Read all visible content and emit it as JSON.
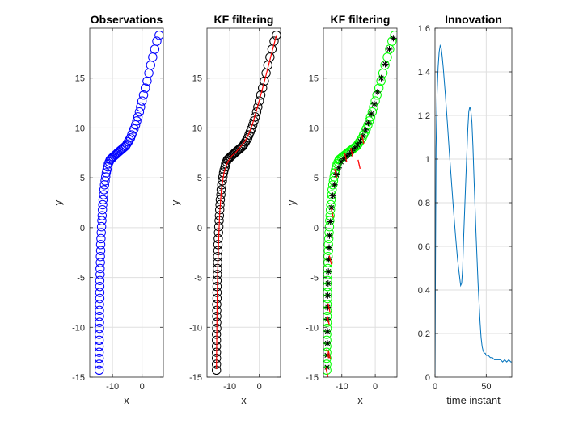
{
  "chart_data": [
    {
      "type": "scatter",
      "title": "Observations",
      "xlabel": "x",
      "ylabel": "y",
      "xlim": [
        -17.7,
        7.2
      ],
      "ylim": [
        -15,
        20
      ],
      "xticks": [
        -10,
        0
      ],
      "yticks": [
        -15,
        -10,
        -5,
        0,
        5,
        10,
        15
      ],
      "ytick_labels": [
        "-15",
        "-10",
        "-5",
        "0",
        "5",
        "10",
        "15"
      ],
      "grid": true,
      "series": [
        {
          "role": "observations",
          "marker": "circle",
          "color": "#0000ff",
          "x": [
            -14.5,
            -14.5,
            -14.5,
            -14.5,
            -14.5,
            -14.5,
            -14.5,
            -14.4,
            -14.4,
            -14.4,
            -14.4,
            -14.4,
            -14.3,
            -14.3,
            -14.3,
            -14.3,
            -14.2,
            -14.2,
            -14.1,
            -14.1,
            -14.0,
            -14.0,
            -13.9,
            -13.8,
            -13.7,
            -13.6,
            -13.5,
            -13.4,
            -13.3,
            -13.2,
            -13.0,
            -12.9,
            -12.7,
            -12.5,
            -12.3,
            -12.1,
            -11.9,
            -11.6,
            -11.4,
            -11.1,
            -10.8,
            -10.5,
            -10.1,
            -9.8,
            -9.4,
            -9.0,
            -8.6,
            -8.3,
            -7.9,
            -7.5,
            -7.1,
            -6.7,
            -6.3,
            -5.9,
            -5.5,
            -5.1,
            -4.7,
            -4.3,
            -3.9,
            -3.5,
            -3.1,
            -2.7,
            -2.2,
            -1.8,
            -1.4,
            -0.9,
            -0.5,
            0.0,
            0.5,
            1.1,
            1.7,
            2.3,
            2.9,
            3.6,
            4.3,
            5.0,
            5.8
          ],
          "y": [
            -14.3,
            -13.7,
            -13.1,
            -12.5,
            -11.9,
            -11.3,
            -10.7,
            -10.1,
            -9.5,
            -8.9,
            -8.3,
            -7.7,
            -7.1,
            -6.5,
            -5.9,
            -5.3,
            -4.7,
            -4.1,
            -3.5,
            -2.9,
            -2.3,
            -1.7,
            -1.1,
            -0.5,
            0.1,
            0.7,
            1.2,
            1.8,
            2.3,
            2.8,
            3.3,
            3.8,
            4.3,
            4.7,
            5.1,
            5.5,
            5.8,
            6.1,
            6.4,
            6.6,
            6.8,
            6.9,
            7.0,
            7.1,
            7.2,
            7.3,
            7.4,
            7.5,
            7.6,
            7.7,
            7.8,
            7.9,
            8.0,
            8.1,
            8.2,
            8.4,
            8.6,
            8.8,
            9.0,
            9.3,
            9.6,
            9.9,
            10.3,
            10.7,
            11.1,
            11.6,
            12.1,
            12.7,
            13.3,
            14.0,
            14.7,
            15.5,
            16.3,
            17.1,
            17.9,
            18.7,
            19.3
          ]
        }
      ]
    },
    {
      "type": "scatter",
      "title": "KF filtering",
      "xlabel": "x",
      "ylabel": "y",
      "xlim": [
        -17.7,
        7.2
      ],
      "ylim": [
        -15,
        20
      ],
      "xticks": [
        -10,
        0
      ],
      "yticks": [
        -15,
        -10,
        -5,
        0,
        5,
        10,
        15
      ],
      "ytick_labels": [
        "-15",
        "-10",
        "-5",
        "0",
        "5",
        "10",
        "15"
      ],
      "grid": true,
      "series": [
        {
          "role": "filtered-estimate",
          "marker": "circle",
          "color": "#000000",
          "x": [
            -14.5,
            -14.5,
            -14.5,
            -14.5,
            -14.5,
            -14.5,
            -14.5,
            -14.4,
            -14.4,
            -14.4,
            -14.4,
            -14.4,
            -14.3,
            -14.3,
            -14.3,
            -14.3,
            -14.2,
            -14.2,
            -14.1,
            -14.1,
            -14.0,
            -14.0,
            -13.9,
            -13.8,
            -13.7,
            -13.6,
            -13.5,
            -13.4,
            -13.3,
            -13.2,
            -13.0,
            -12.9,
            -12.7,
            -12.5,
            -12.3,
            -12.1,
            -11.9,
            -11.6,
            -11.4,
            -11.1,
            -10.8,
            -10.5,
            -10.1,
            -9.8,
            -9.4,
            -9.0,
            -8.6,
            -8.3,
            -7.9,
            -7.5,
            -7.1,
            -6.7,
            -6.3,
            -5.9,
            -5.5,
            -5.1,
            -4.7,
            -4.3,
            -3.9,
            -3.5,
            -3.1,
            -2.7,
            -2.2,
            -1.8,
            -1.4,
            -0.9,
            -0.5,
            0.0,
            0.5,
            1.1,
            1.7,
            2.3,
            2.9,
            3.6,
            4.3,
            5.0,
            5.8
          ],
          "y": [
            -14.3,
            -13.7,
            -13.1,
            -12.5,
            -11.9,
            -11.3,
            -10.7,
            -10.1,
            -9.5,
            -8.9,
            -8.3,
            -7.7,
            -7.1,
            -6.5,
            -5.9,
            -5.3,
            -4.7,
            -4.1,
            -3.5,
            -2.9,
            -2.3,
            -1.7,
            -1.1,
            -0.5,
            0.1,
            0.7,
            1.2,
            1.8,
            2.3,
            2.8,
            3.3,
            3.8,
            4.3,
            4.7,
            5.1,
            5.5,
            5.8,
            6.1,
            6.4,
            6.6,
            6.8,
            6.9,
            7.0,
            7.1,
            7.2,
            7.3,
            7.4,
            7.5,
            7.6,
            7.7,
            7.8,
            7.9,
            8.0,
            8.1,
            8.2,
            8.4,
            8.6,
            8.8,
            9.0,
            9.3,
            9.6,
            9.9,
            10.3,
            10.7,
            11.1,
            11.6,
            12.1,
            12.7,
            13.3,
            14.0,
            14.7,
            15.5,
            16.3,
            17.1,
            17.9,
            18.7,
            19.3
          ]
        },
        {
          "role": "true-trajectory",
          "marker": "line",
          "color": "#ff0000",
          "x": [
            -14.5,
            -14.4,
            -14.3,
            -14.1,
            -13.8,
            -13.4,
            -12.8,
            -11.9,
            -10.7,
            -9.3,
            -7.8,
            -6.4,
            -5.0,
            -3.7,
            -2.4,
            -1.0,
            0.5,
            2.2,
            4.0,
            5.8
          ],
          "y": [
            -14.2,
            -11.0,
            -7.7,
            -4.5,
            -1.5,
            1.5,
            3.9,
            5.6,
            6.6,
            7.2,
            7.6,
            8.1,
            8.6,
            9.3,
            10.3,
            11.7,
            13.3,
            15.2,
            17.3,
            19.3
          ]
        }
      ]
    },
    {
      "type": "scatter",
      "title": "KF filtering",
      "xlabel": "x",
      "ylabel": "y",
      "xlim": [
        -15.5,
        6.5
      ],
      "ylim": [
        -15,
        20
      ],
      "xticks": [
        -10,
        0
      ],
      "yticks": [
        -15,
        -10,
        -5,
        0,
        5,
        10,
        15
      ],
      "ytick_labels": [
        "-15",
        "-10",
        "-5",
        "0",
        "5",
        "10",
        "15"
      ],
      "grid": true,
      "series": [
        {
          "role": "observations",
          "marker": "circle",
          "color": "#00ff00",
          "x": [
            -14.5,
            -14.5,
            -14.5,
            -14.5,
            -14.5,
            -14.5,
            -14.5,
            -14.4,
            -14.4,
            -14.4,
            -14.4,
            -14.4,
            -14.3,
            -14.3,
            -14.3,
            -14.3,
            -14.2,
            -14.2,
            -14.1,
            -14.1,
            -14.0,
            -14.0,
            -13.9,
            -13.8,
            -13.7,
            -13.6,
            -13.5,
            -13.4,
            -13.3,
            -13.2,
            -13.0,
            -12.9,
            -12.7,
            -12.5,
            -12.3,
            -12.1,
            -11.9,
            -11.6,
            -11.4,
            -11.1,
            -10.8,
            -10.5,
            -10.1,
            -9.8,
            -9.4,
            -9.0,
            -8.6,
            -8.3,
            -7.9,
            -7.5,
            -7.1,
            -6.7,
            -6.3,
            -5.9,
            -5.5,
            -5.1,
            -4.7,
            -4.3,
            -3.9,
            -3.5,
            -3.1,
            -2.7,
            -2.2,
            -1.8,
            -1.4,
            -0.9,
            -0.5,
            0.0,
            0.5,
            1.1,
            1.7,
            2.3,
            2.9,
            3.6,
            4.3,
            5.0,
            5.8
          ],
          "y": [
            -14.3,
            -13.7,
            -13.1,
            -12.5,
            -11.9,
            -11.3,
            -10.7,
            -10.1,
            -9.5,
            -8.9,
            -8.3,
            -7.7,
            -7.1,
            -6.5,
            -5.9,
            -5.3,
            -4.7,
            -4.1,
            -3.5,
            -2.9,
            -2.3,
            -1.7,
            -1.1,
            -0.5,
            0.1,
            0.7,
            1.2,
            1.8,
            2.3,
            2.8,
            3.3,
            3.8,
            4.3,
            4.7,
            5.1,
            5.5,
            5.8,
            6.1,
            6.4,
            6.6,
            6.8,
            6.9,
            7.0,
            7.1,
            7.2,
            7.3,
            7.4,
            7.5,
            7.6,
            7.7,
            7.8,
            7.9,
            8.0,
            8.1,
            8.2,
            8.4,
            8.6,
            8.8,
            9.0,
            9.3,
            9.6,
            9.9,
            10.3,
            10.7,
            11.1,
            11.6,
            12.1,
            12.7,
            13.3,
            14.0,
            14.7,
            15.5,
            16.3,
            17.1,
            17.9,
            18.7,
            19.3
          ]
        },
        {
          "role": "filtered-estimate",
          "marker": "asterisk",
          "color": "#000000",
          "x": [
            -14.4,
            -14.4,
            -14.3,
            -14.3,
            -14.3,
            -14.2,
            -14.2,
            -14.1,
            -14.0,
            -13.9,
            -13.8,
            -13.7,
            -13.4,
            -13.1,
            -12.7,
            -12.2,
            -11.6,
            -10.9,
            -10.2,
            -9.4,
            -8.5,
            -7.7,
            -6.9,
            -6.1,
            -5.3,
            -4.5,
            -3.7,
            -2.9,
            -2.1,
            -1.2,
            -0.3,
            0.7,
            1.8,
            3.0,
            4.2,
            5.4
          ],
          "y": [
            -14.0,
            -12.8,
            -11.6,
            -10.4,
            -9.2,
            -8.0,
            -6.8,
            -5.6,
            -4.4,
            -3.2,
            -2.0,
            -0.8,
            0.6,
            2.0,
            3.2,
            4.3,
            5.3,
            6.0,
            6.6,
            6.9,
            7.2,
            7.4,
            7.7,
            8.0,
            8.3,
            8.7,
            9.2,
            9.8,
            10.5,
            11.4,
            12.4,
            13.6,
            15.0,
            16.4,
            17.9,
            19.0
          ]
        },
        {
          "role": "error-ellipse",
          "marker": "line",
          "color": "#ff0000",
          "x": [
            -14.5,
            -14.3,
            -14.1,
            -13.8,
            -13.9,
            -13.5,
            -12.9,
            -11.9,
            -8.9,
            -7.1,
            -4.9,
            -3.8
          ],
          "y": [
            -14.5,
            -12.6,
            -9.3,
            -12.7,
            -8.0,
            -3.2,
            1.5,
            5.5,
            7.1,
            7.6,
            6.4,
            8.9
          ]
        }
      ]
    },
    {
      "type": "line",
      "title": "Innovation",
      "xlabel": "time instant",
      "ylabel": "",
      "xlim": [
        0,
        75
      ],
      "ylim": [
        0,
        1.6
      ],
      "xticks": [
        0,
        50
      ],
      "yticks": [
        0,
        0.2,
        0.4,
        0.6,
        0.8,
        1,
        1.2,
        1.4,
        1.6
      ],
      "ytick_labels": [
        "0",
        "0.2",
        "0.4",
        "0.6",
        "0.8",
        "1",
        "1.2",
        "1.4",
        "1.6"
      ],
      "grid": true,
      "series": [
        {
          "color": "#0072bd",
          "x": [
            0,
            0.5,
            1,
            2,
            3,
            4,
            5,
            6,
            7,
            8,
            10,
            12,
            14,
            16,
            18,
            20,
            22,
            24,
            25,
            26,
            27,
            28,
            30,
            32,
            33,
            34,
            35,
            36,
            37,
            38,
            40,
            42,
            44,
            45,
            46,
            47,
            48,
            49,
            50,
            52,
            54,
            56,
            58,
            60,
            62,
            64,
            66,
            68,
            70,
            72,
            74,
            75
          ],
          "y": [
            0.0,
            0.55,
            1.05,
            1.3,
            1.42,
            1.49,
            1.52,
            1.51,
            1.47,
            1.42,
            1.3,
            1.17,
            1.03,
            0.9,
            0.77,
            0.65,
            0.54,
            0.46,
            0.42,
            0.43,
            0.5,
            0.65,
            0.9,
            1.14,
            1.22,
            1.24,
            1.22,
            1.17,
            1.06,
            0.92,
            0.66,
            0.43,
            0.25,
            0.18,
            0.14,
            0.12,
            0.11,
            0.11,
            0.1,
            0.1,
            0.09,
            0.09,
            0.08,
            0.08,
            0.08,
            0.08,
            0.07,
            0.08,
            0.07,
            0.08,
            0.07,
            0.07
          ]
        }
      ]
    }
  ]
}
